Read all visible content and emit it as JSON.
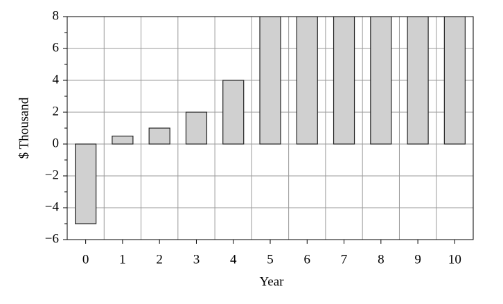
{
  "chart_data": {
    "type": "bar",
    "xlabel": "Year",
    "ylabel": "$ Thousand",
    "categories": [
      "0",
      "1",
      "2",
      "3",
      "4",
      "5",
      "6",
      "7",
      "8",
      "9",
      "10"
    ],
    "values": [
      -5,
      0.5,
      1,
      2,
      4,
      8,
      8,
      8,
      8,
      8,
      8
    ],
    "color": "#d0d0d0",
    "ylim": [
      -6,
      8
    ],
    "yticks": [
      {
        "value": -6,
        "label": "−6"
      },
      {
        "value": -4,
        "label": "−4"
      },
      {
        "value": -2,
        "label": "−2"
      },
      0,
      2,
      4,
      6,
      8
    ],
    "grid": true
  }
}
